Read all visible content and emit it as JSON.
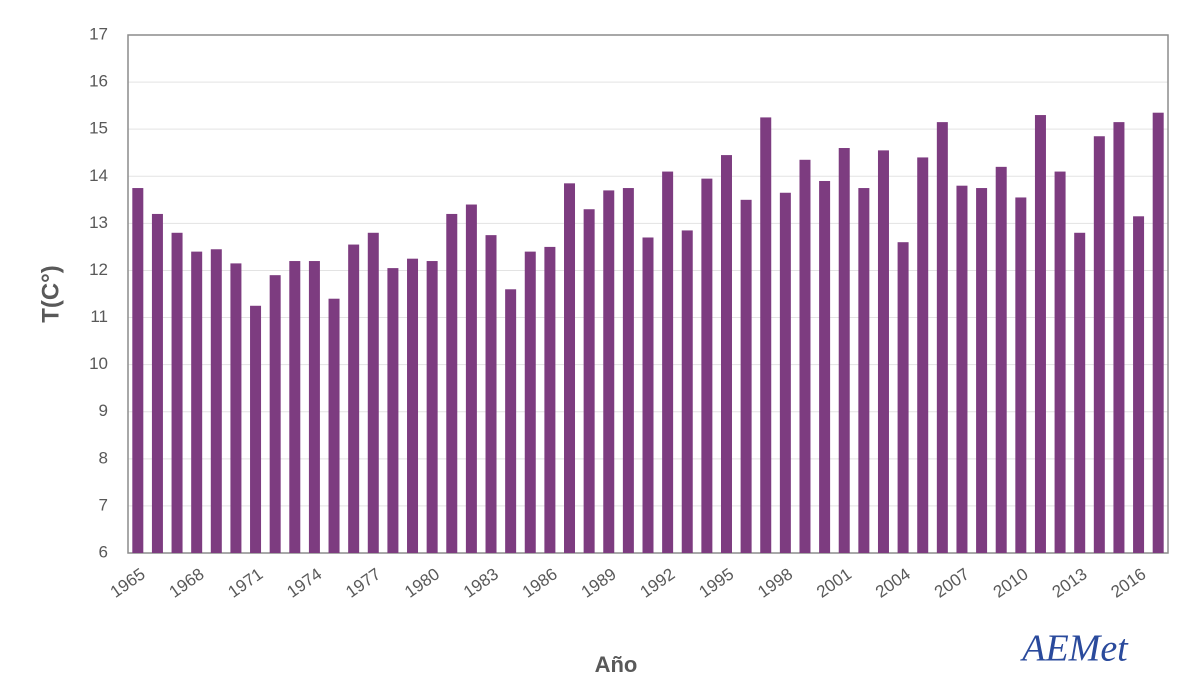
{
  "chart_data": {
    "type": "bar",
    "y_label": "T(C°)",
    "x_label": "Año",
    "logo": "AEMet",
    "categories": [
      "1965",
      null,
      null,
      "1968",
      null,
      null,
      "1971",
      null,
      null,
      "1974",
      null,
      null,
      "1977",
      null,
      null,
      "1980",
      null,
      null,
      "1983",
      null,
      null,
      "1986",
      null,
      null,
      "1989",
      null,
      null,
      "1992",
      null,
      null,
      "1995",
      null,
      null,
      "1998",
      null,
      null,
      "2001",
      null,
      null,
      "2004",
      null,
      null,
      "2007",
      null,
      null,
      "2010",
      null,
      null,
      "2013",
      null,
      null,
      "2016",
      null
    ],
    "values": [
      13.75,
      13.2,
      12.8,
      12.4,
      12.45,
      12.15,
      11.25,
      11.9,
      12.2,
      12.2,
      11.4,
      12.55,
      12.8,
      12.05,
      12.25,
      12.2,
      13.2,
      13.4,
      12.75,
      11.6,
      12.4,
      12.5,
      13.85,
      13.3,
      13.7,
      13.75,
      12.7,
      14.1,
      12.85,
      13.95,
      14.45,
      13.5,
      15.25,
      13.65,
      14.35,
      13.9,
      14.6,
      13.75,
      14.55,
      12.6,
      14.4,
      15.15,
      13.8,
      13.75,
      14.2,
      13.55,
      15.3,
      14.1,
      12.8,
      14.85,
      15.15,
      13.15,
      15.35
    ],
    "color": "#7d3c80",
    "ylim": [
      6,
      17
    ],
    "yticks": [
      6,
      7,
      8,
      9,
      10,
      11,
      12,
      13,
      14,
      15,
      16,
      17
    ],
    "grid": true
  }
}
